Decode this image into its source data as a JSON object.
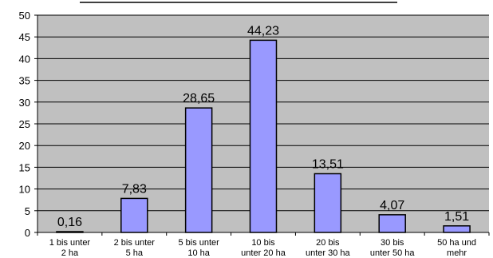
{
  "chart_data": {
    "type": "bar",
    "title": "",
    "xlabel": "",
    "ylabel": "",
    "categories": [
      [
        "1 bis unter",
        "2 ha"
      ],
      [
        "2 bis unter",
        "5 ha"
      ],
      [
        "5 bis unter",
        "10 ha"
      ],
      [
        "10 bis",
        "unter 20 ha"
      ],
      [
        "20 bis",
        "unter 30 ha"
      ],
      [
        "30 bis",
        "unter 50 ha"
      ],
      [
        "50 ha und",
        "mehr"
      ]
    ],
    "values": [
      0.16,
      7.83,
      28.65,
      44.23,
      13.51,
      4.07,
      1.51
    ],
    "data_labels": [
      "0,16",
      "7,83",
      "28,65",
      "44,23",
      "13,51",
      "4,07",
      "1,51"
    ],
    "ylim": [
      0,
      50
    ],
    "yticks": [
      0,
      5,
      10,
      15,
      20,
      25,
      30,
      35,
      40,
      45,
      50
    ],
    "grid": true,
    "colors": {
      "bar_fill": "#9999ff",
      "bar_stroke": "#000000",
      "plot_bg": "#c0c0c0",
      "grid": "#000000",
      "axis": "#000000"
    }
  }
}
